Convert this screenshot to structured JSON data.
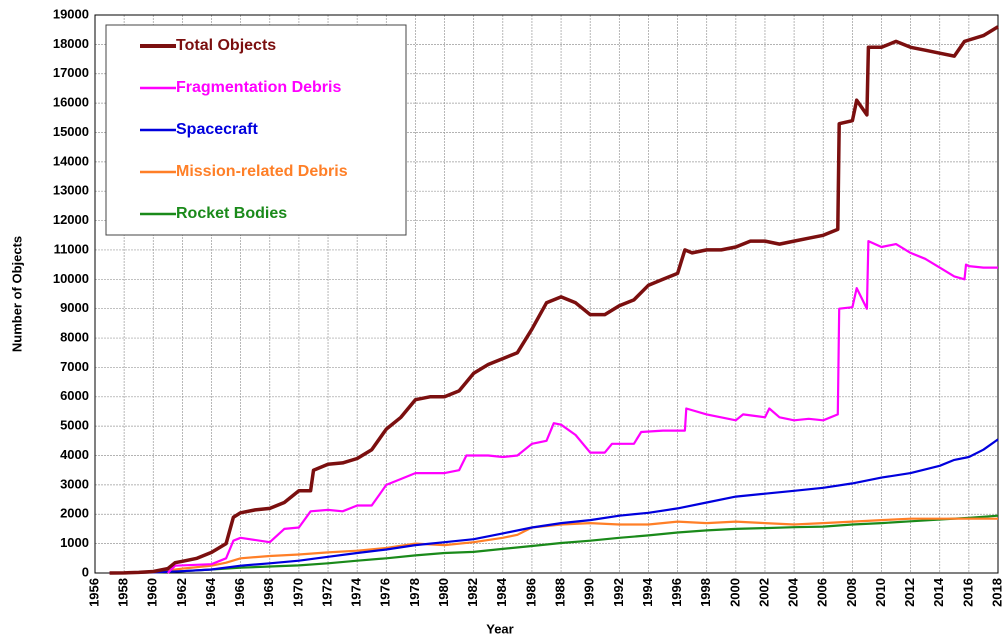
{
  "chart_data": {
    "type": "line",
    "xlabel": "Year",
    "ylabel": "Number of Objects",
    "xlim": [
      1956,
      2018
    ],
    "ylim": [
      0,
      19000
    ],
    "xticks": [
      1956,
      1958,
      1960,
      1962,
      1964,
      1966,
      1968,
      1970,
      1972,
      1974,
      1976,
      1978,
      1980,
      1982,
      1984,
      1986,
      1988,
      1990,
      1992,
      1994,
      1996,
      1998,
      2000,
      2002,
      2004,
      2006,
      2008,
      2010,
      2012,
      2014,
      2016,
      2018
    ],
    "yticks": [
      0,
      1000,
      2000,
      3000,
      4000,
      5000,
      6000,
      7000,
      8000,
      9000,
      10000,
      11000,
      12000,
      13000,
      14000,
      15000,
      16000,
      17000,
      18000,
      19000
    ],
    "grid": true,
    "legend": "upper left",
    "series": [
      {
        "name": "Total Objects",
        "color": "#7b0f0f",
        "x": [
          1957,
          1958,
          1959,
          1960,
          1961,
          1961.5,
          1962,
          1963,
          1964,
          1965,
          1965.5,
          1966,
          1967,
          1968,
          1969,
          1970,
          1970.8,
          1971,
          1972,
          1973,
          1974,
          1975,
          1976,
          1977,
          1978,
          1979,
          1980,
          1981,
          1982,
          1983,
          1984,
          1985,
          1986,
          1987,
          1988,
          1989,
          1990,
          1991,
          1992,
          1993,
          1994,
          1995,
          1996,
          1996.5,
          1997,
          1998,
          1999,
          2000,
          2001,
          2002,
          2003,
          2004,
          2005,
          2006,
          2007,
          2007.1,
          2008,
          2008.3,
          2009,
          2009.1,
          2010,
          2011,
          2012,
          2013,
          2014,
          2015,
          2015.7,
          2016,
          2017,
          2018
        ],
        "values": [
          0,
          5,
          20,
          50,
          150,
          350,
          400,
          500,
          700,
          1000,
          1900,
          2050,
          2150,
          2200,
          2400,
          2800,
          2800,
          3500,
          3700,
          3750,
          3900,
          4200,
          4900,
          5300,
          5900,
          6000,
          6000,
          6200,
          6800,
          7100,
          7300,
          7500,
          8300,
          9200,
          9400,
          9200,
          8800,
          8800,
          9100,
          9300,
          9800,
          10000,
          10200,
          11000,
          10900,
          11000,
          11000,
          11100,
          11300,
          11300,
          11200,
          11300,
          11400,
          11500,
          11700,
          15300,
          15400,
          16100,
          15600,
          17900,
          17900,
          18100,
          17900,
          17800,
          17700,
          17600,
          18100,
          18150,
          18300,
          18600
        ]
      },
      {
        "name": "Fragmentation Debris",
        "color": "#ff00ff",
        "x": [
          1961,
          1961.5,
          1964,
          1965,
          1965.5,
          1966,
          1968,
          1969,
          1970,
          1970.8,
          1972,
          1973,
          1974,
          1975,
          1976,
          1977,
          1978,
          1979,
          1980,
          1981,
          1981.5,
          1983,
          1984,
          1985,
          1986,
          1987,
          1987.5,
          1988,
          1989,
          1990,
          1991,
          1991.5,
          1993,
          1993.5,
          1995,
          1996.5,
          1996.6,
          1998,
          2000,
          2000.5,
          2002,
          2002.3,
          2003,
          2004,
          2005,
          2006,
          2007,
          2007.1,
          2008,
          2008.3,
          2009,
          2009.1,
          2010,
          2011,
          2012,
          2013,
          2014,
          2015,
          2015.7,
          2015.8,
          2016,
          2017,
          2018
        ],
        "values": [
          0,
          250,
          300,
          500,
          1100,
          1200,
          1050,
          1500,
          1550,
          2100,
          2150,
          2100,
          2300,
          2300,
          3000,
          3200,
          3400,
          3400,
          3400,
          3500,
          4000,
          4000,
          3950,
          4000,
          4400,
          4500,
          5100,
          5050,
          4700,
          4100,
          4100,
          4400,
          4400,
          4800,
          4850,
          4850,
          5600,
          5400,
          5200,
          5400,
          5300,
          5600,
          5300,
          5200,
          5250,
          5200,
          5400,
          9000,
          9050,
          9700,
          9000,
          11300,
          11100,
          11200,
          10900,
          10700,
          10400,
          10100,
          10000,
          10500,
          10450,
          10400,
          10400
        ]
      },
      {
        "name": "Spacecraft",
        "color": "#0000dd",
        "x": [
          1957,
          1960,
          1962,
          1964,
          1966,
          1968,
          1970,
          1972,
          1974,
          1976,
          1978,
          1980,
          1982,
          1984,
          1986,
          1988,
          1990,
          1992,
          1994,
          1996,
          1998,
          2000,
          2002,
          2004,
          2006,
          2008,
          2010,
          2012,
          2014,
          2015,
          2016,
          2017,
          2018
        ],
        "values": [
          0,
          20,
          60,
          120,
          250,
          330,
          420,
          550,
          680,
          800,
          950,
          1050,
          1150,
          1350,
          1550,
          1700,
          1800,
          1950,
          2050,
          2200,
          2400,
          2600,
          2700,
          2800,
          2900,
          3050,
          3250,
          3400,
          3650,
          3850,
          3950,
          4200,
          4550
        ]
      },
      {
        "name": "Mission-related Debris",
        "color": "#ff7f27",
        "x": [
          1957,
          1960,
          1962,
          1964,
          1965,
          1966,
          1968,
          1970,
          1972,
          1974,
          1976,
          1978,
          1980,
          1982,
          1984,
          1985,
          1986,
          1988,
          1990,
          1992,
          1994,
          1996,
          1998,
          2000,
          2002,
          2004,
          2006,
          2008,
          2010,
          2012,
          2014,
          2016,
          2018
        ],
        "values": [
          0,
          20,
          150,
          250,
          350,
          500,
          580,
          630,
          700,
          760,
          850,
          1000,
          950,
          1050,
          1200,
          1300,
          1550,
          1650,
          1700,
          1650,
          1650,
          1750,
          1700,
          1750,
          1700,
          1650,
          1700,
          1750,
          1800,
          1850,
          1850,
          1850,
          1850
        ]
      },
      {
        "name": "Rocket Bodies",
        "color": "#1a8a1a",
        "x": [
          1957,
          1960,
          1962,
          1964,
          1966,
          1968,
          1970,
          1972,
          1974,
          1976,
          1978,
          1980,
          1982,
          1984,
          1986,
          1988,
          1990,
          1992,
          1994,
          1996,
          1998,
          2000,
          2002,
          2004,
          2006,
          2008,
          2010,
          2012,
          2014,
          2016,
          2018
        ],
        "values": [
          0,
          20,
          60,
          120,
          180,
          220,
          260,
          330,
          420,
          500,
          600,
          680,
          720,
          820,
          920,
          1020,
          1100,
          1200,
          1280,
          1380,
          1450,
          1500,
          1530,
          1560,
          1580,
          1650,
          1700,
          1760,
          1820,
          1880,
          1950
        ]
      }
    ]
  }
}
